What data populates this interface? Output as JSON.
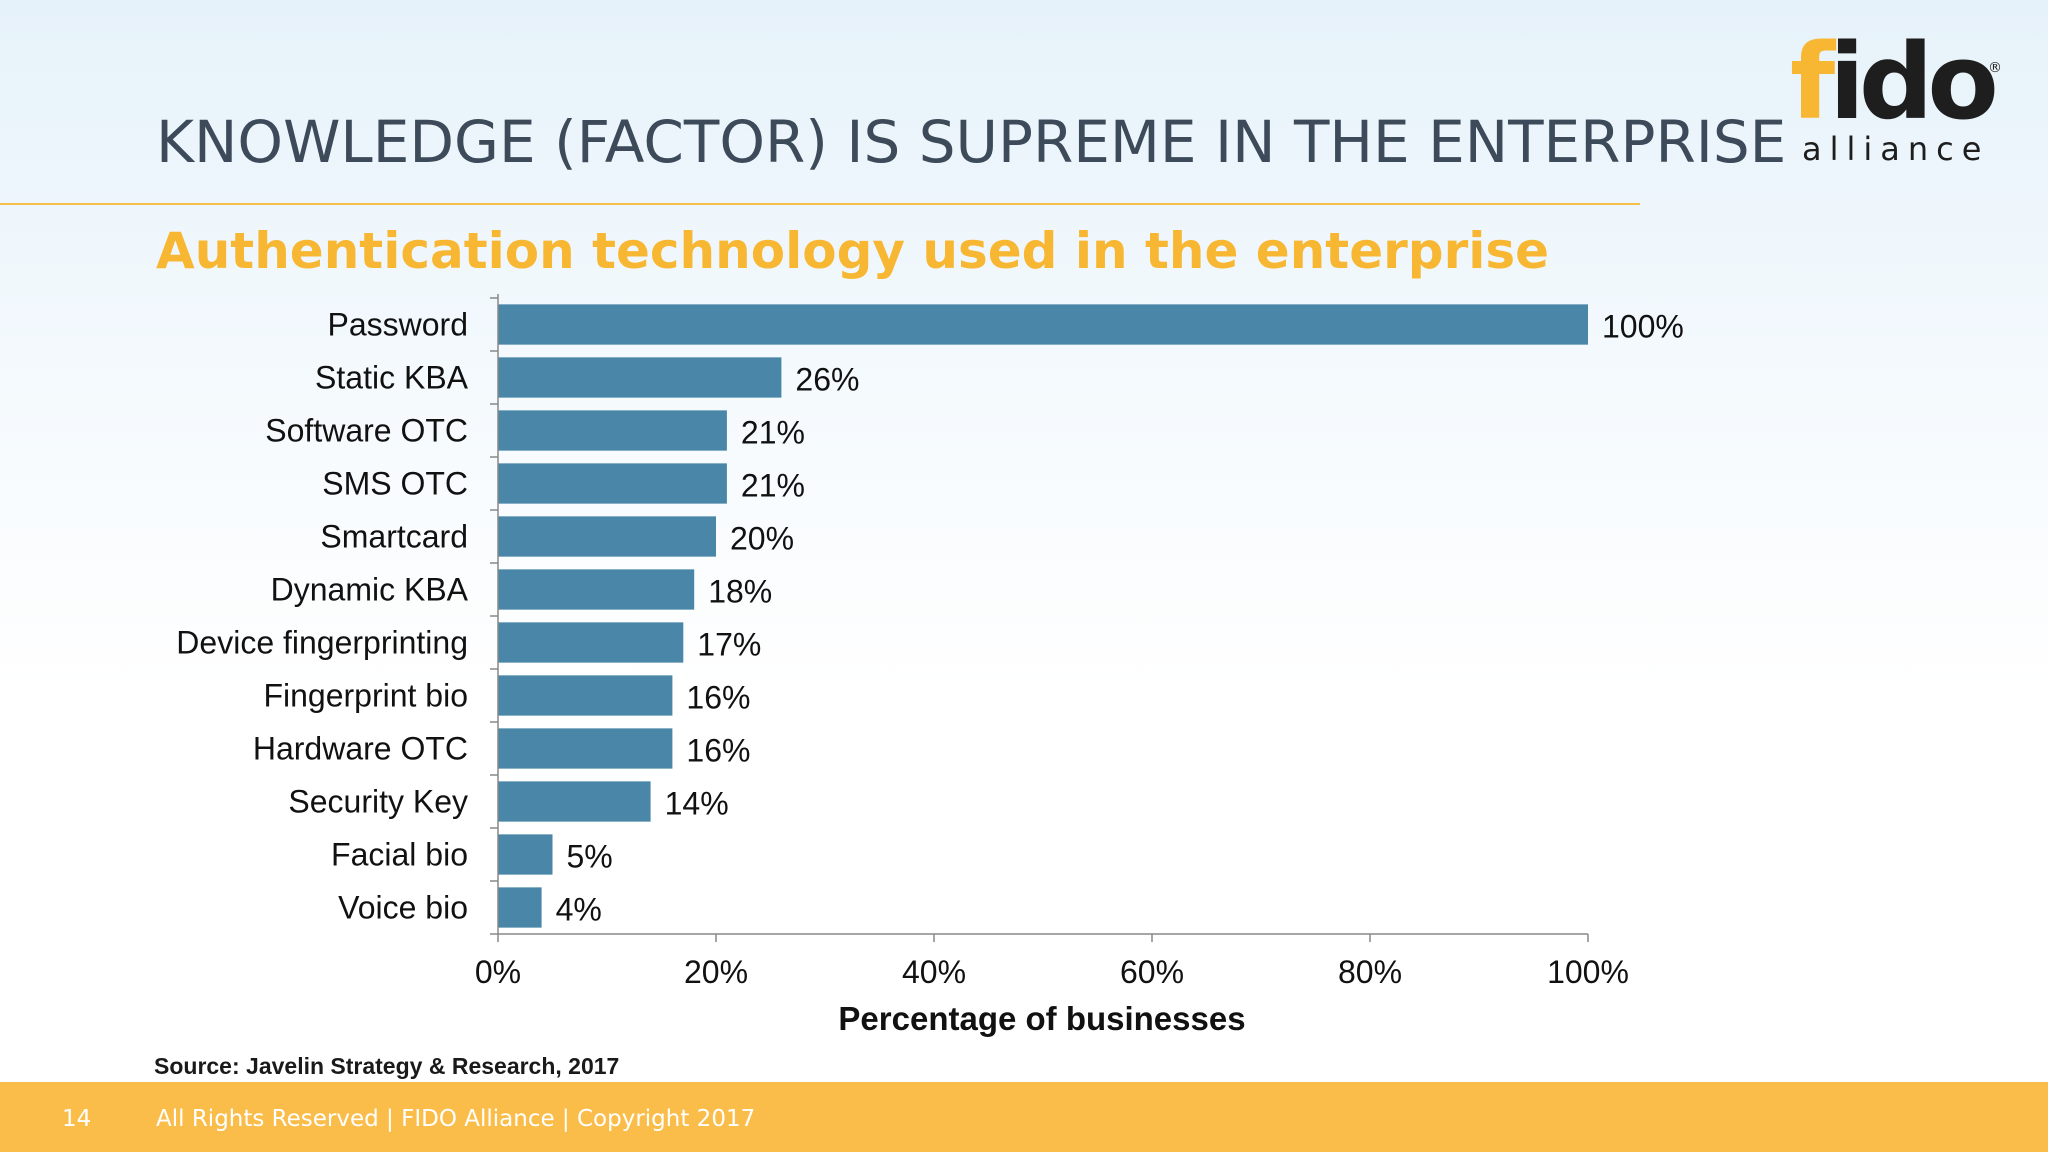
{
  "slide": {
    "title": "KNOWLEDGE (FACTOR) IS SUPREME IN THE ENTERPRISE",
    "subtitle": "Authentication technology used in the enterprise",
    "source": "Source: Javelin Strategy & Research, 2017",
    "page_number": "14",
    "footer_text": "All Rights Reserved | FIDO Alliance | Copyright 2017"
  },
  "logo": {
    "fido_first": "f",
    "fido_rest": "ido",
    "registered": "®",
    "alliance": "alliance"
  },
  "colors": {
    "bar": "#4a86a8",
    "accent": "#f7b733",
    "footer": "#fbbd4a",
    "title": "#3c4a5a"
  },
  "chart_data": {
    "type": "bar",
    "orientation": "horizontal",
    "categories": [
      "Password",
      "Static KBA",
      "Software OTC",
      "SMS OTC",
      "Smartcard",
      "Dynamic KBA",
      "Device fingerprinting",
      "Fingerprint bio",
      "Hardware OTC",
      "Security Key",
      "Facial bio",
      "Voice bio"
    ],
    "values": [
      100,
      26,
      21,
      21,
      20,
      18,
      17,
      16,
      16,
      14,
      5,
      4
    ],
    "value_labels": [
      "100%",
      "26%",
      "21%",
      "21%",
      "20%",
      "18%",
      "17%",
      "16%",
      "16%",
      "14%",
      "5%",
      "4%"
    ],
    "title": "Authentication technology used in the enterprise",
    "xlabel": "Percentage of businesses",
    "ylabel": "",
    "xlim": [
      0,
      100
    ],
    "xticks": [
      0,
      20,
      40,
      60,
      80,
      100
    ],
    "xtick_labels": [
      "0%",
      "20%",
      "40%",
      "60%",
      "80%",
      "100%"
    ],
    "grid": false,
    "legend": "none"
  }
}
